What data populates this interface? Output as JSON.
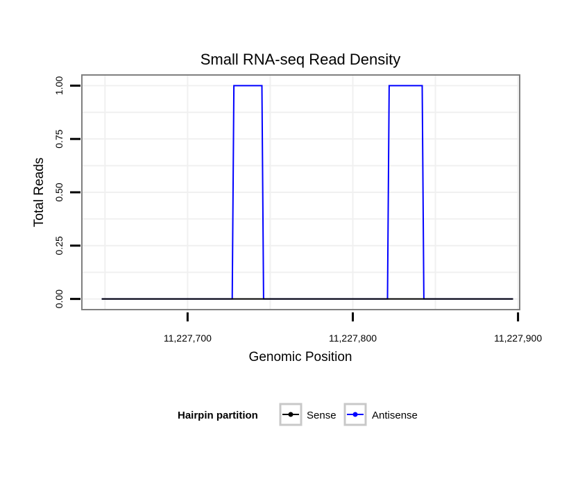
{
  "chart_data": {
    "type": "line",
    "title": "Small RNA-seq Read Density",
    "xlabel": "Genomic Position",
    "ylabel": "Total Reads",
    "xlim": [
      11227636,
      11227901
    ],
    "ylim": [
      -0.05,
      1.05
    ],
    "x_ticks": [
      {
        "value": 11227700,
        "label": "11,227,700"
      },
      {
        "value": 11227800,
        "label": "11,227,800"
      },
      {
        "value": 11227900,
        "label": "11,227,900"
      }
    ],
    "y_ticks": [
      {
        "value": 0,
        "label": "0.00"
      },
      {
        "value": 0.25,
        "label": "0.25"
      },
      {
        "value": 0.5,
        "label": "0.50"
      },
      {
        "value": 0.75,
        "label": "0.75"
      },
      {
        "value": 1,
        "label": "1.00"
      }
    ],
    "grid": true,
    "legend": {
      "title": "Hairpin partition",
      "position": "bottom"
    },
    "series": [
      {
        "name": "Sense",
        "color": "#000000",
        "x": [
          11227648,
          11227897
        ],
        "y": [
          0,
          0
        ]
      },
      {
        "name": "Antisense",
        "color": "#0000ff",
        "x": [
          11227648,
          11227727,
          11227728,
          11227745,
          11227746,
          11227821,
          11227822,
          11227842,
          11227843,
          11227897
        ],
        "y": [
          0,
          0,
          1,
          1,
          0,
          0,
          1,
          1,
          0,
          0
        ]
      }
    ]
  }
}
